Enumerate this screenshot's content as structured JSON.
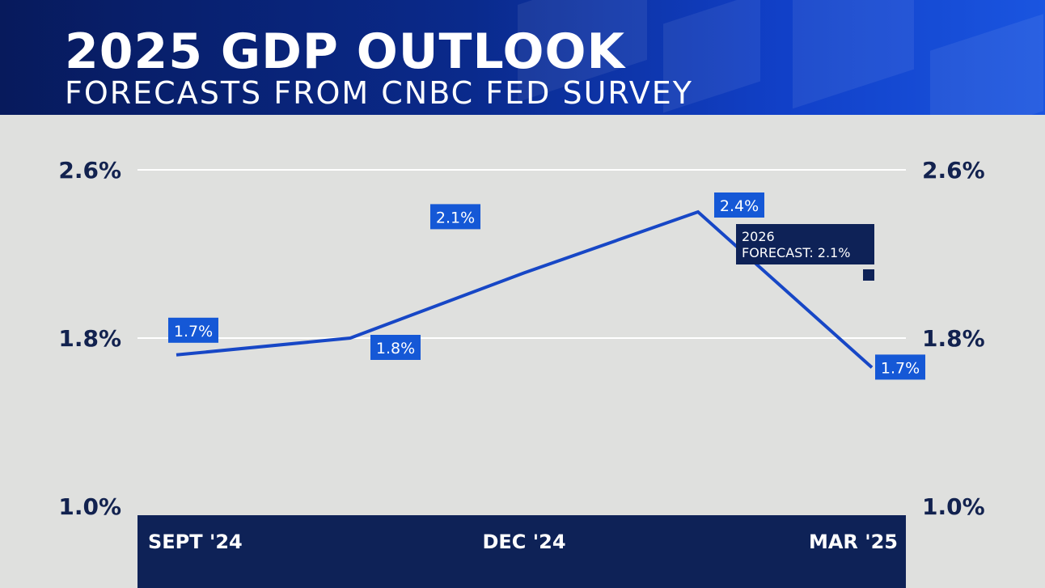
{
  "header": {
    "title": "2025 GDP OUTLOOK",
    "subtitle": "FORECASTS FROM CNBC FED SURVEY"
  },
  "colors": {
    "line": "#1747c6",
    "label_bg": "#1558d6",
    "axis_band": "#0e2257",
    "axis_text": "#12224f",
    "gridline": "#ffffff",
    "forecast_marker": "#0e2257"
  },
  "chart_data": {
    "type": "line",
    "x_positions": [
      0,
      1,
      2,
      3,
      4
    ],
    "x_tick_labels": [
      {
        "pos": 0,
        "label": "SEPT '24"
      },
      {
        "pos": 2,
        "label": "DEC '24"
      },
      {
        "pos": 4,
        "label": "MAR '25"
      }
    ],
    "series": [
      {
        "values": [
          1.72,
          1.8,
          2.11,
          2.4,
          1.66
        ],
        "labels": [
          "1.7%",
          "1.8%",
          "2.1%",
          "2.4%",
          "1.7%"
        ]
      }
    ],
    "y_ticks": [
      {
        "value": 2.6,
        "label": "2.6%"
      },
      {
        "value": 1.8,
        "label": "1.8%"
      },
      {
        "value": 1.0,
        "label": "1.0%"
      }
    ],
    "ylim": [
      1.0,
      2.6
    ],
    "grid": true,
    "annotation": {
      "lines": [
        "2026",
        "FORECAST: 2.1%"
      ],
      "value": 2.1
    }
  }
}
